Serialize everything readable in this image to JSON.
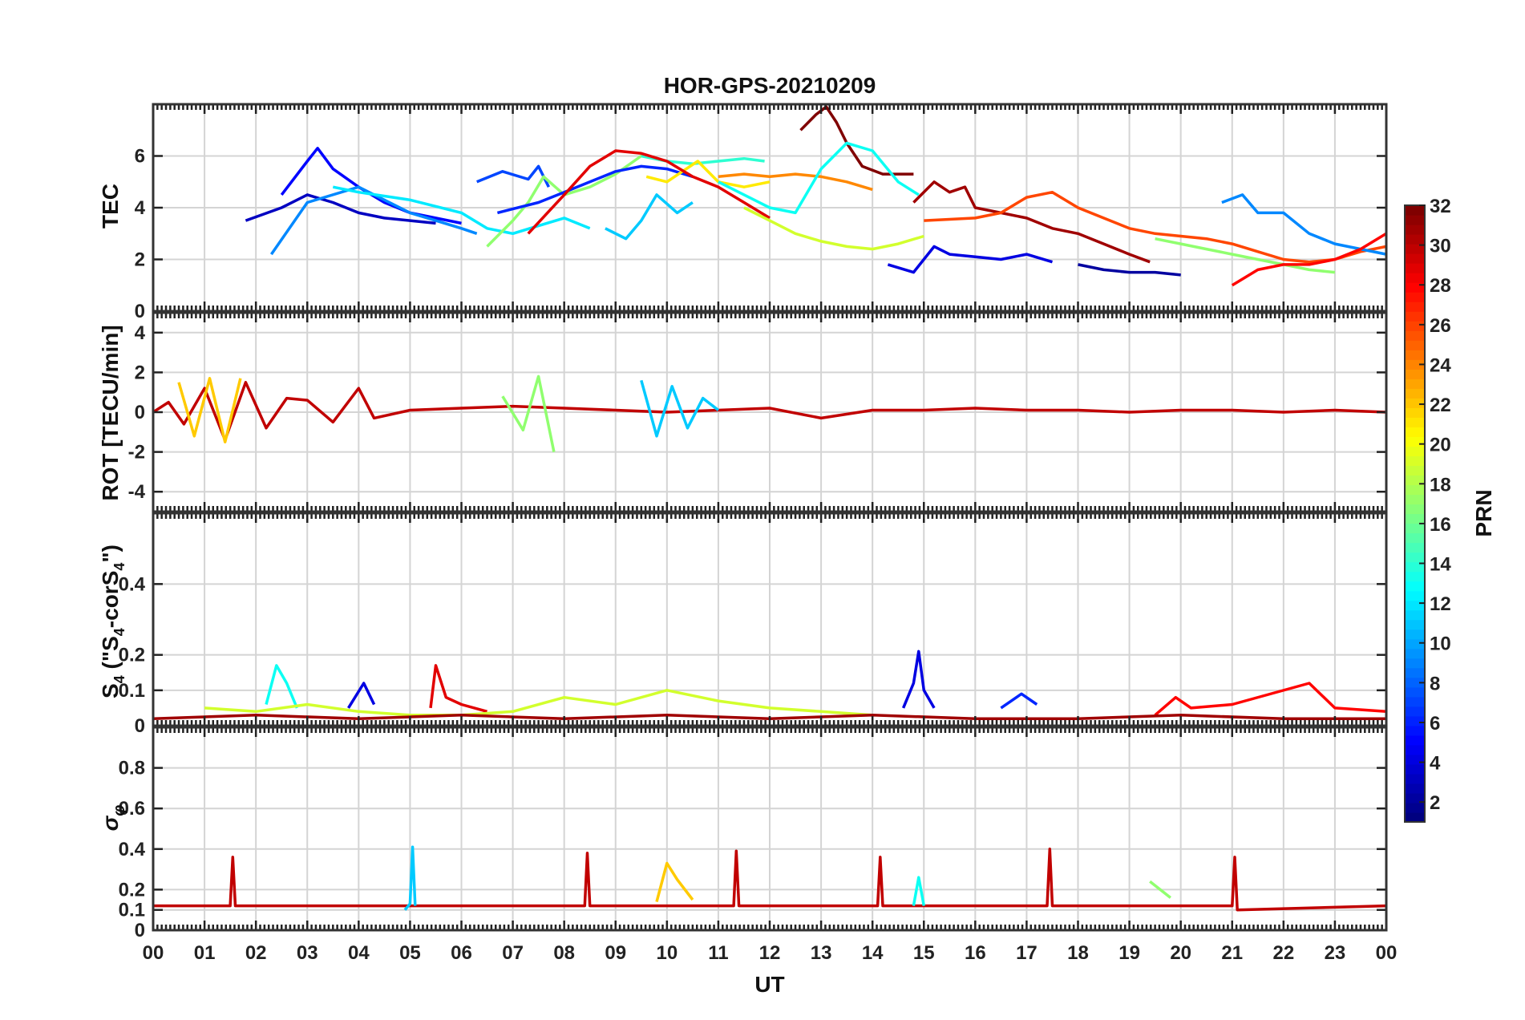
{
  "chart_data": {
    "type": "line",
    "title": "HOR-GPS-20210209",
    "xlabel": "UT",
    "x_tick_labels": [
      "00",
      "01",
      "02",
      "03",
      "04",
      "05",
      "06",
      "07",
      "08",
      "09",
      "10",
      "11",
      "12",
      "13",
      "14",
      "15",
      "16",
      "17",
      "18",
      "19",
      "20",
      "21",
      "22",
      "23",
      "00"
    ],
    "xlim": [
      0,
      24
    ],
    "grid": true,
    "panels": [
      {
        "ylabel": "TEC",
        "ylim": [
          0,
          8
        ],
        "yticks": [
          0,
          2,
          4,
          6
        ],
        "ytick_labels": [
          "0",
          "2",
          "4",
          "6"
        ],
        "series": [
          {
            "prn": 3,
            "x": [
              1.8,
              2.5,
              3.0,
              3.5,
              4.0,
              4.5,
              5.0,
              5.5
            ],
            "y": [
              3.5,
              4.0,
              4.5,
              4.2,
              3.8,
              3.6,
              3.5,
              3.4
            ]
          },
          {
            "prn": 5,
            "x": [
              2.5,
              3.0,
              3.2,
              3.5,
              4.0,
              4.5,
              5.0,
              6.0
            ],
            "y": [
              4.5,
              5.8,
              6.3,
              5.5,
              4.8,
              4.2,
              3.8,
              3.4
            ]
          },
          {
            "prn": 9,
            "x": [
              2.3,
              3.0,
              4.0,
              5.0,
              5.5,
              6.0,
              6.3
            ],
            "y": [
              2.2,
              4.2,
              4.8,
              3.8,
              3.5,
              3.2,
              3.0
            ]
          },
          {
            "prn": 12,
            "x": [
              3.5,
              4.0,
              5.0,
              6.0,
              6.5,
              7.0,
              7.5,
              8.0,
              8.5
            ],
            "y": [
              4.8,
              4.6,
              4.3,
              3.8,
              3.2,
              3.0,
              3.3,
              3.6,
              3.2
            ]
          },
          {
            "prn": 7,
            "x": [
              6.3,
              6.8,
              7.3,
              7.5,
              7.7
            ],
            "y": [
              5.0,
              5.4,
              5.1,
              5.6,
              4.8
            ]
          },
          {
            "prn": 17,
            "x": [
              6.5,
              7.0,
              7.3,
              7.6,
              8.0,
              8.5,
              9.0,
              9.5,
              10.0
            ],
            "y": [
              2.5,
              3.5,
              4.2,
              5.2,
              4.5,
              4.8,
              5.3,
              6.0,
              5.8
            ]
          },
          {
            "prn": 11,
            "x": [
              8.8,
              9.2,
              9.5,
              9.8,
              10.2,
              10.5
            ],
            "y": [
              3.2,
              2.8,
              3.5,
              4.5,
              3.8,
              4.2
            ]
          },
          {
            "prn": 6,
            "x": [
              6.7,
              7.5,
              8.0,
              8.5,
              9.0,
              9.5,
              10.0,
              10.5
            ],
            "y": [
              3.8,
              4.2,
              4.6,
              5.0,
              5.4,
              5.6,
              5.5,
              5.2
            ]
          },
          {
            "prn": 14,
            "x": [
              9.5,
              10.0,
              10.5,
              11.0,
              11.5,
              11.9
            ],
            "y": [
              6.0,
              5.8,
              5.7,
              5.8,
              5.9,
              5.8
            ]
          },
          {
            "prn": 21,
            "x": [
              9.6,
              10.0,
              10.3,
              10.6,
              11.0,
              11.5,
              12.0
            ],
            "y": [
              5.2,
              5.0,
              5.4,
              5.8,
              5.0,
              4.8,
              5.0
            ]
          },
          {
            "prn": 24,
            "x": [
              11.0,
              11.5,
              12.0,
              12.5,
              13.0,
              13.5,
              14.0
            ],
            "y": [
              5.2,
              5.3,
              5.2,
              5.3,
              5.2,
              5.0,
              4.7
            ]
          },
          {
            "prn": 29,
            "x": [
              7.3,
              8.0,
              8.5,
              9.0,
              9.5,
              10.0,
              10.5,
              11.0,
              11.5,
              12.0
            ],
            "y": [
              3.0,
              4.5,
              5.6,
              6.2,
              6.1,
              5.8,
              5.2,
              4.8,
              4.2,
              3.6
            ]
          },
          {
            "prn": 32,
            "x": [
              12.6,
              12.9,
              13.1,
              13.3,
              13.5,
              13.8,
              14.2,
              14.8
            ],
            "y": [
              7.0,
              7.6,
              7.9,
              7.3,
              6.5,
              5.6,
              5.3,
              5.3
            ]
          },
          {
            "prn": 13,
            "x": [
              11.0,
              11.5,
              12.0,
              12.5,
              13.0,
              13.5,
              14.0,
              14.5,
              14.9
            ],
            "y": [
              5.0,
              4.5,
              4.0,
              3.8,
              5.5,
              6.5,
              6.2,
              5.0,
              4.5
            ]
          },
          {
            "prn": 19,
            "x": [
              11.5,
              12.0,
              12.5,
              13.0,
              13.5,
              14.0,
              14.5,
              15.0
            ],
            "y": [
              4.0,
              3.5,
              3.0,
              2.7,
              2.5,
              2.4,
              2.6,
              2.9
            ]
          },
          {
            "prn": 4,
            "x": [
              14.3,
              14.8,
              15.2,
              15.5,
              16.0,
              16.5,
              17.0,
              17.5
            ],
            "y": [
              1.8,
              1.5,
              2.5,
              2.2,
              2.1,
              2.0,
              2.2,
              1.9
            ]
          },
          {
            "prn": 31,
            "x": [
              14.8,
              15.2,
              15.5,
              15.8,
              16.0,
              16.5,
              17.0,
              17.5,
              18.0,
              18.5,
              19.0,
              19.4
            ],
            "y": [
              4.2,
              5.0,
              4.6,
              4.8,
              4.0,
              3.8,
              3.6,
              3.2,
              3.0,
              2.6,
              2.2,
              1.9
            ]
          },
          {
            "prn": 26,
            "x": [
              15.0,
              16.0,
              16.5,
              17.0,
              17.5,
              18.0,
              18.5,
              19.0,
              19.5,
              20.0,
              20.5,
              21.0,
              21.5,
              22.0,
              22.5,
              23.0,
              23.5,
              24.0
            ],
            "y": [
              3.5,
              3.6,
              3.8,
              4.4,
              4.6,
              4.0,
              3.6,
              3.2,
              3.0,
              2.9,
              2.8,
              2.6,
              2.3,
              2.0,
              1.9,
              2.0,
              2.3,
              2.5
            ]
          },
          {
            "prn": 2,
            "x": [
              18.0,
              18.5,
              19.0,
              19.5,
              20.0
            ],
            "y": [
              1.8,
              1.6,
              1.5,
              1.5,
              1.4
            ]
          },
          {
            "prn": 9,
            "x": [
              20.8,
              21.2,
              21.5,
              22.0,
              22.5,
              23.0,
              23.5,
              24.0
            ],
            "y": [
              4.2,
              4.5,
              3.8,
              3.8,
              3.0,
              2.6,
              2.4,
              2.2
            ]
          },
          {
            "prn": 17,
            "x": [
              19.5,
              20.0,
              20.5,
              21.0,
              21.5,
              22.0,
              22.5,
              23.0
            ],
            "y": [
              2.8,
              2.6,
              2.4,
              2.2,
              2.0,
              1.8,
              1.6,
              1.5
            ]
          },
          {
            "prn": 28,
            "x": [
              21.0,
              21.5,
              22.0,
              22.5,
              23.0,
              23.5,
              24.0
            ],
            "y": [
              1.0,
              1.6,
              1.8,
              1.8,
              2.0,
              2.4,
              3.0
            ]
          }
        ]
      },
      {
        "ylabel": "ROT [TECU/min]",
        "ylim": [
          -5,
          5
        ],
        "yticks": [
          -4,
          -2,
          0,
          2,
          4
        ],
        "ytick_labels": [
          "-4",
          "-2",
          "0",
          "2",
          "4"
        ],
        "series": [
          {
            "prn": 30,
            "x": [
              0.0,
              0.3,
              0.6,
              1.0,
              1.4,
              1.8,
              2.2,
              2.6,
              3.0,
              3.5,
              4.0,
              4.3,
              5.0,
              6.0,
              7.0,
              8.0,
              9.0,
              10.0,
              11.0,
              12.0,
              13.0,
              14.0,
              15.0,
              16.0,
              17.0,
              18.0,
              19.0,
              20.0,
              21.0,
              22.0,
              23.0,
              24.0
            ],
            "y": [
              0.0,
              0.5,
              -0.6,
              1.2,
              -1.4,
              1.5,
              -0.8,
              0.7,
              0.6,
              -0.5,
              1.2,
              -0.3,
              0.1,
              0.2,
              0.3,
              0.2,
              0.1,
              0.0,
              0.1,
              0.2,
              -0.3,
              0.1,
              0.1,
              0.2,
              0.1,
              0.1,
              0.0,
              0.1,
              0.1,
              0.0,
              0.1,
              0.0
            ]
          },
          {
            "prn": 17,
            "x": [
              6.8,
              7.2,
              7.5,
              7.8
            ],
            "y": [
              0.8,
              -0.9,
              1.8,
              -2.0
            ]
          },
          {
            "prn": 11,
            "x": [
              9.5,
              9.8,
              10.1,
              10.4,
              10.7,
              11.0
            ],
            "y": [
              1.6,
              -1.2,
              1.3,
              -0.8,
              0.7,
              0.1
            ]
          },
          {
            "prn": 22,
            "x": [
              0.5,
              0.8,
              1.1,
              1.4,
              1.7
            ],
            "y": [
              1.5,
              -1.2,
              1.7,
              -1.5,
              1.7
            ]
          }
        ]
      },
      {
        "ylabel": "S4 (\"S4-corS4\")",
        "ylim": [
          0,
          0.6
        ],
        "yticks": [
          0,
          0.1,
          0.2,
          0.4
        ],
        "ytick_labels": [
          "0",
          "0.1",
          "0.2",
          "0.4"
        ],
        "series": [
          {
            "prn": 13,
            "x": [
              2.2,
              2.4,
              2.6,
              2.8
            ],
            "y": [
              0.06,
              0.17,
              0.12,
              0.05
            ]
          },
          {
            "prn": 29,
            "x": [
              5.4,
              5.5,
              5.7,
              6.0,
              6.5
            ],
            "y": [
              0.05,
              0.17,
              0.08,
              0.06,
              0.04
            ]
          },
          {
            "prn": 4,
            "x": [
              14.6,
              14.8,
              14.9,
              15.0,
              15.2
            ],
            "y": [
              0.05,
              0.12,
              0.21,
              0.1,
              0.05
            ]
          },
          {
            "prn": 4,
            "x": [
              3.8,
              4.1,
              4.3
            ],
            "y": [
              0.05,
              0.12,
              0.06
            ]
          },
          {
            "prn": 6,
            "x": [
              16.5,
              16.9,
              17.2
            ],
            "y": [
              0.05,
              0.09,
              0.06
            ]
          },
          {
            "prn": 28,
            "x": [
              19.5,
              19.9,
              20.2,
              21.0,
              22.5,
              23.0,
              24.0
            ],
            "y": [
              0.03,
              0.08,
              0.05,
              0.06,
              0.12,
              0.05,
              0.04
            ]
          },
          {
            "prn": 19,
            "x": [
              1.0,
              2.0,
              3.0,
              4.0,
              5.0,
              6.0,
              7.0,
              8.0,
              9.0,
              10.0,
              11.0,
              12.0,
              13.0,
              14.0
            ],
            "y": [
              0.05,
              0.04,
              0.06,
              0.04,
              0.03,
              0.03,
              0.04,
              0.08,
              0.06,
              0.1,
              0.07,
              0.05,
              0.04,
              0.03
            ]
          },
          {
            "prn": 31,
            "x": [
              0.0,
              2.0,
              4.0,
              6.0,
              8.0,
              10.0,
              12.0,
              14.0,
              16.0,
              18.0,
              20.0,
              22.0,
              24.0
            ],
            "y": [
              0.02,
              0.03,
              0.02,
              0.03,
              0.02,
              0.03,
              0.02,
              0.03,
              0.02,
              0.02,
              0.03,
              0.02,
              0.02
            ]
          }
        ]
      },
      {
        "ylabel": "σφ",
        "ylim": [
          0,
          1.0
        ],
        "yticks": [
          0,
          0.1,
          0.2,
          0.4,
          0.6,
          0.8
        ],
        "ytick_labels": [
          "0",
          "0.1",
          "0.2",
          "0.4",
          "0.6",
          "0.8"
        ],
        "series": [
          {
            "prn": 30,
            "x": [
              0.0,
              1.5,
              1.55,
              1.6,
              8.4,
              8.45,
              8.5,
              11.3,
              11.35,
              11.4,
              14.1,
              14.15,
              14.2,
              17.4,
              17.45,
              17.5,
              21.0,
              21.05,
              21.1,
              24.0
            ],
            "y": [
              0.12,
              0.12,
              0.36,
              0.12,
              0.12,
              0.38,
              0.12,
              0.12,
              0.39,
              0.12,
              0.12,
              0.36,
              0.12,
              0.12,
              0.4,
              0.12,
              0.12,
              0.36,
              0.1,
              0.12
            ]
          },
          {
            "prn": 11,
            "x": [
              4.9,
              5.0,
              5.05,
              5.1
            ],
            "y": [
              0.1,
              0.13,
              0.41,
              0.12
            ]
          },
          {
            "prn": 22,
            "x": [
              9.8,
              10.0,
              10.2,
              10.5
            ],
            "y": [
              0.14,
              0.33,
              0.25,
              0.15
            ]
          },
          {
            "prn": 13,
            "x": [
              14.8,
              14.9,
              15.0
            ],
            "y": [
              0.12,
              0.26,
              0.12
            ]
          },
          {
            "prn": 17,
            "x": [
              19.4,
              19.8
            ],
            "y": [
              0.24,
              0.16
            ]
          }
        ]
      }
    ],
    "colorbar": {
      "label": "PRN",
      "range": [
        1,
        32
      ],
      "colormap": "jet",
      "tick_labels": [
        "2",
        "4",
        "6",
        "8",
        "10",
        "12",
        "14",
        "16",
        "18",
        "20",
        "22",
        "24",
        "26",
        "28",
        "30",
        "32"
      ]
    }
  }
}
